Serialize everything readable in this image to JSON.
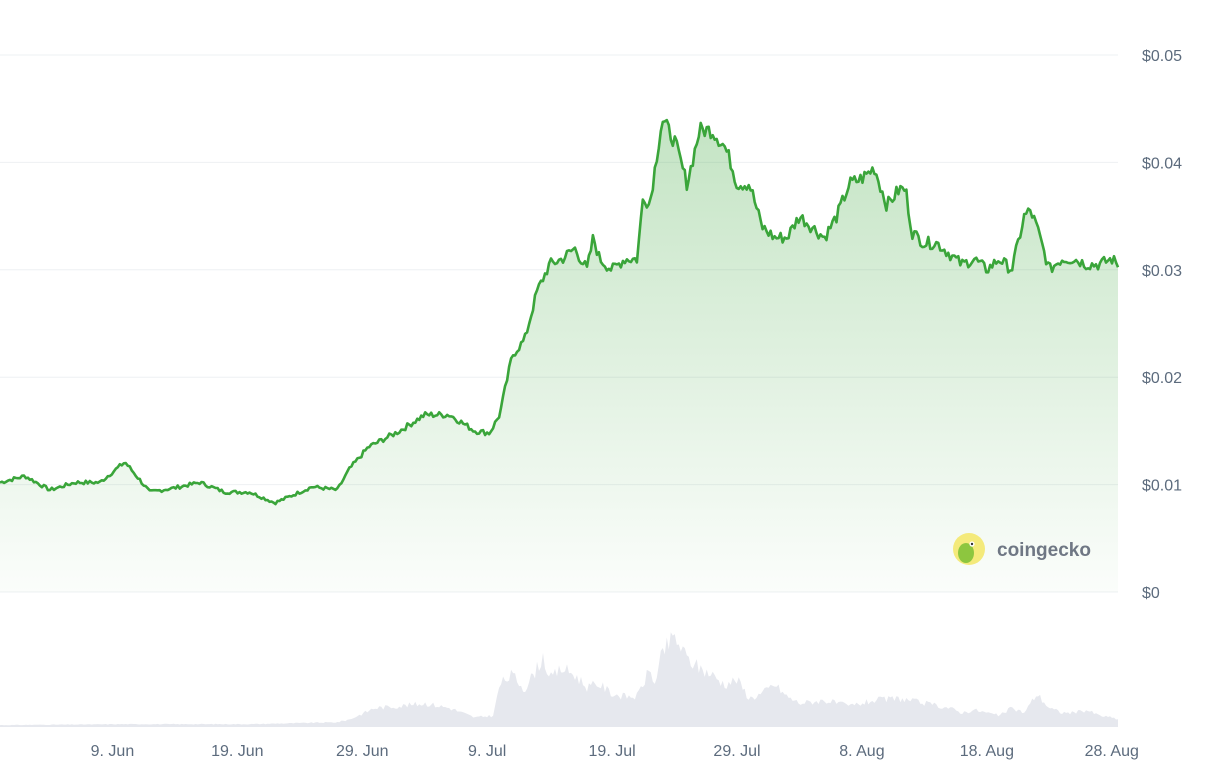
{
  "chart_data": {
    "type": "area",
    "y_tick_labels": [
      "$0.05",
      "$0.04",
      "$0.03",
      "$0.02",
      "$0.01",
      "$0"
    ],
    "y_tick_values": [
      0.05,
      0.04,
      0.03,
      0.02,
      0.01,
      0
    ],
    "ylim": [
      0,
      0.05
    ],
    "x_tick_labels": [
      "9. Jun",
      "19. Jun",
      "29. Jun",
      "9. Jul",
      "19. Jul",
      "29. Jul",
      "8. Aug",
      "18. Aug",
      "28. Aug"
    ],
    "x_tick_days": [
      9,
      19,
      29,
      39,
      49,
      59,
      69,
      79,
      89
    ],
    "x_range_days": [
      0,
      89.5
    ],
    "price_series": {
      "x_days": [
        0,
        2,
        4,
        6,
        8,
        10,
        12,
        14,
        16,
        18,
        20,
        22,
        23,
        25,
        27,
        28,
        29.5,
        32,
        34,
        36,
        38,
        39.2,
        40,
        41,
        42,
        43,
        44,
        45,
        46,
        47,
        47.5,
        48,
        49,
        50,
        51,
        51.5,
        52,
        53,
        54,
        55,
        56,
        57,
        58,
        58.5,
        59,
        60,
        61,
        62,
        63,
        64,
        65,
        66,
        67,
        68,
        69,
        70,
        71,
        72,
        72.5,
        73,
        74,
        75,
        76,
        77,
        78,
        79,
        80,
        81,
        82,
        82.5,
        83,
        84,
        84.5,
        85,
        86,
        87,
        88,
        89,
        89.5
      ],
      "values": [
        0.0102,
        0.0108,
        0.0095,
        0.0102,
        0.0102,
        0.0121,
        0.0093,
        0.0097,
        0.0102,
        0.0093,
        0.0093,
        0.0083,
        0.0088,
        0.0098,
        0.0095,
        0.0115,
        0.0135,
        0.015,
        0.0165,
        0.0165,
        0.015,
        0.0148,
        0.0165,
        0.022,
        0.0235,
        0.028,
        0.0305,
        0.031,
        0.032,
        0.03,
        0.033,
        0.031,
        0.03,
        0.031,
        0.031,
        0.037,
        0.036,
        0.044,
        0.042,
        0.038,
        0.043,
        0.043,
        0.0415,
        0.04,
        0.038,
        0.038,
        0.034,
        0.033,
        0.033,
        0.035,
        0.034,
        0.033,
        0.035,
        0.038,
        0.0385,
        0.0395,
        0.036,
        0.0375,
        0.0375,
        0.0335,
        0.0325,
        0.0325,
        0.0315,
        0.0305,
        0.031,
        0.03,
        0.031,
        0.03,
        0.035,
        0.0355,
        0.034,
        0.03,
        0.0305,
        0.031,
        0.031,
        0.0305,
        0.0305,
        0.031,
        0.0305
      ]
    },
    "volume_series": {
      "x_days": [
        0,
        10,
        20,
        27,
        28,
        30,
        32,
        34,
        36,
        38,
        39.5,
        40,
        41,
        42,
        43,
        43.5,
        44,
        45,
        46,
        47,
        48,
        49,
        50,
        51,
        52,
        52.5,
        53,
        54,
        55,
        56,
        57,
        58,
        59,
        60,
        61,
        62,
        63,
        64,
        66,
        68,
        70,
        72,
        74,
        76,
        77,
        78,
        79,
        80,
        81,
        82,
        83,
        84,
        85,
        86,
        87,
        88,
        89,
        89.5
      ],
      "values": [
        0.02,
        0.03,
        0.03,
        0.05,
        0.08,
        0.2,
        0.22,
        0.25,
        0.2,
        0.1,
        0.12,
        0.45,
        0.55,
        0.4,
        0.62,
        0.75,
        0.5,
        0.62,
        0.55,
        0.42,
        0.45,
        0.35,
        0.32,
        0.32,
        0.6,
        0.45,
        0.78,
        0.95,
        0.72,
        0.62,
        0.55,
        0.45,
        0.5,
        0.3,
        0.35,
        0.45,
        0.32,
        0.25,
        0.28,
        0.22,
        0.28,
        0.3,
        0.25,
        0.2,
        0.15,
        0.18,
        0.15,
        0.12,
        0.2,
        0.15,
        0.35,
        0.2,
        0.15,
        0.15,
        0.18,
        0.12,
        0.1,
        0.08
      ]
    },
    "colors": {
      "line": "#3aa53a",
      "area_top": "#3aa53a",
      "volume": "#e6e8ee",
      "grid": "#eef0f3",
      "axis_text": "#5c6b7d"
    },
    "grid": true,
    "watermark": {
      "text": "coingecko"
    }
  }
}
